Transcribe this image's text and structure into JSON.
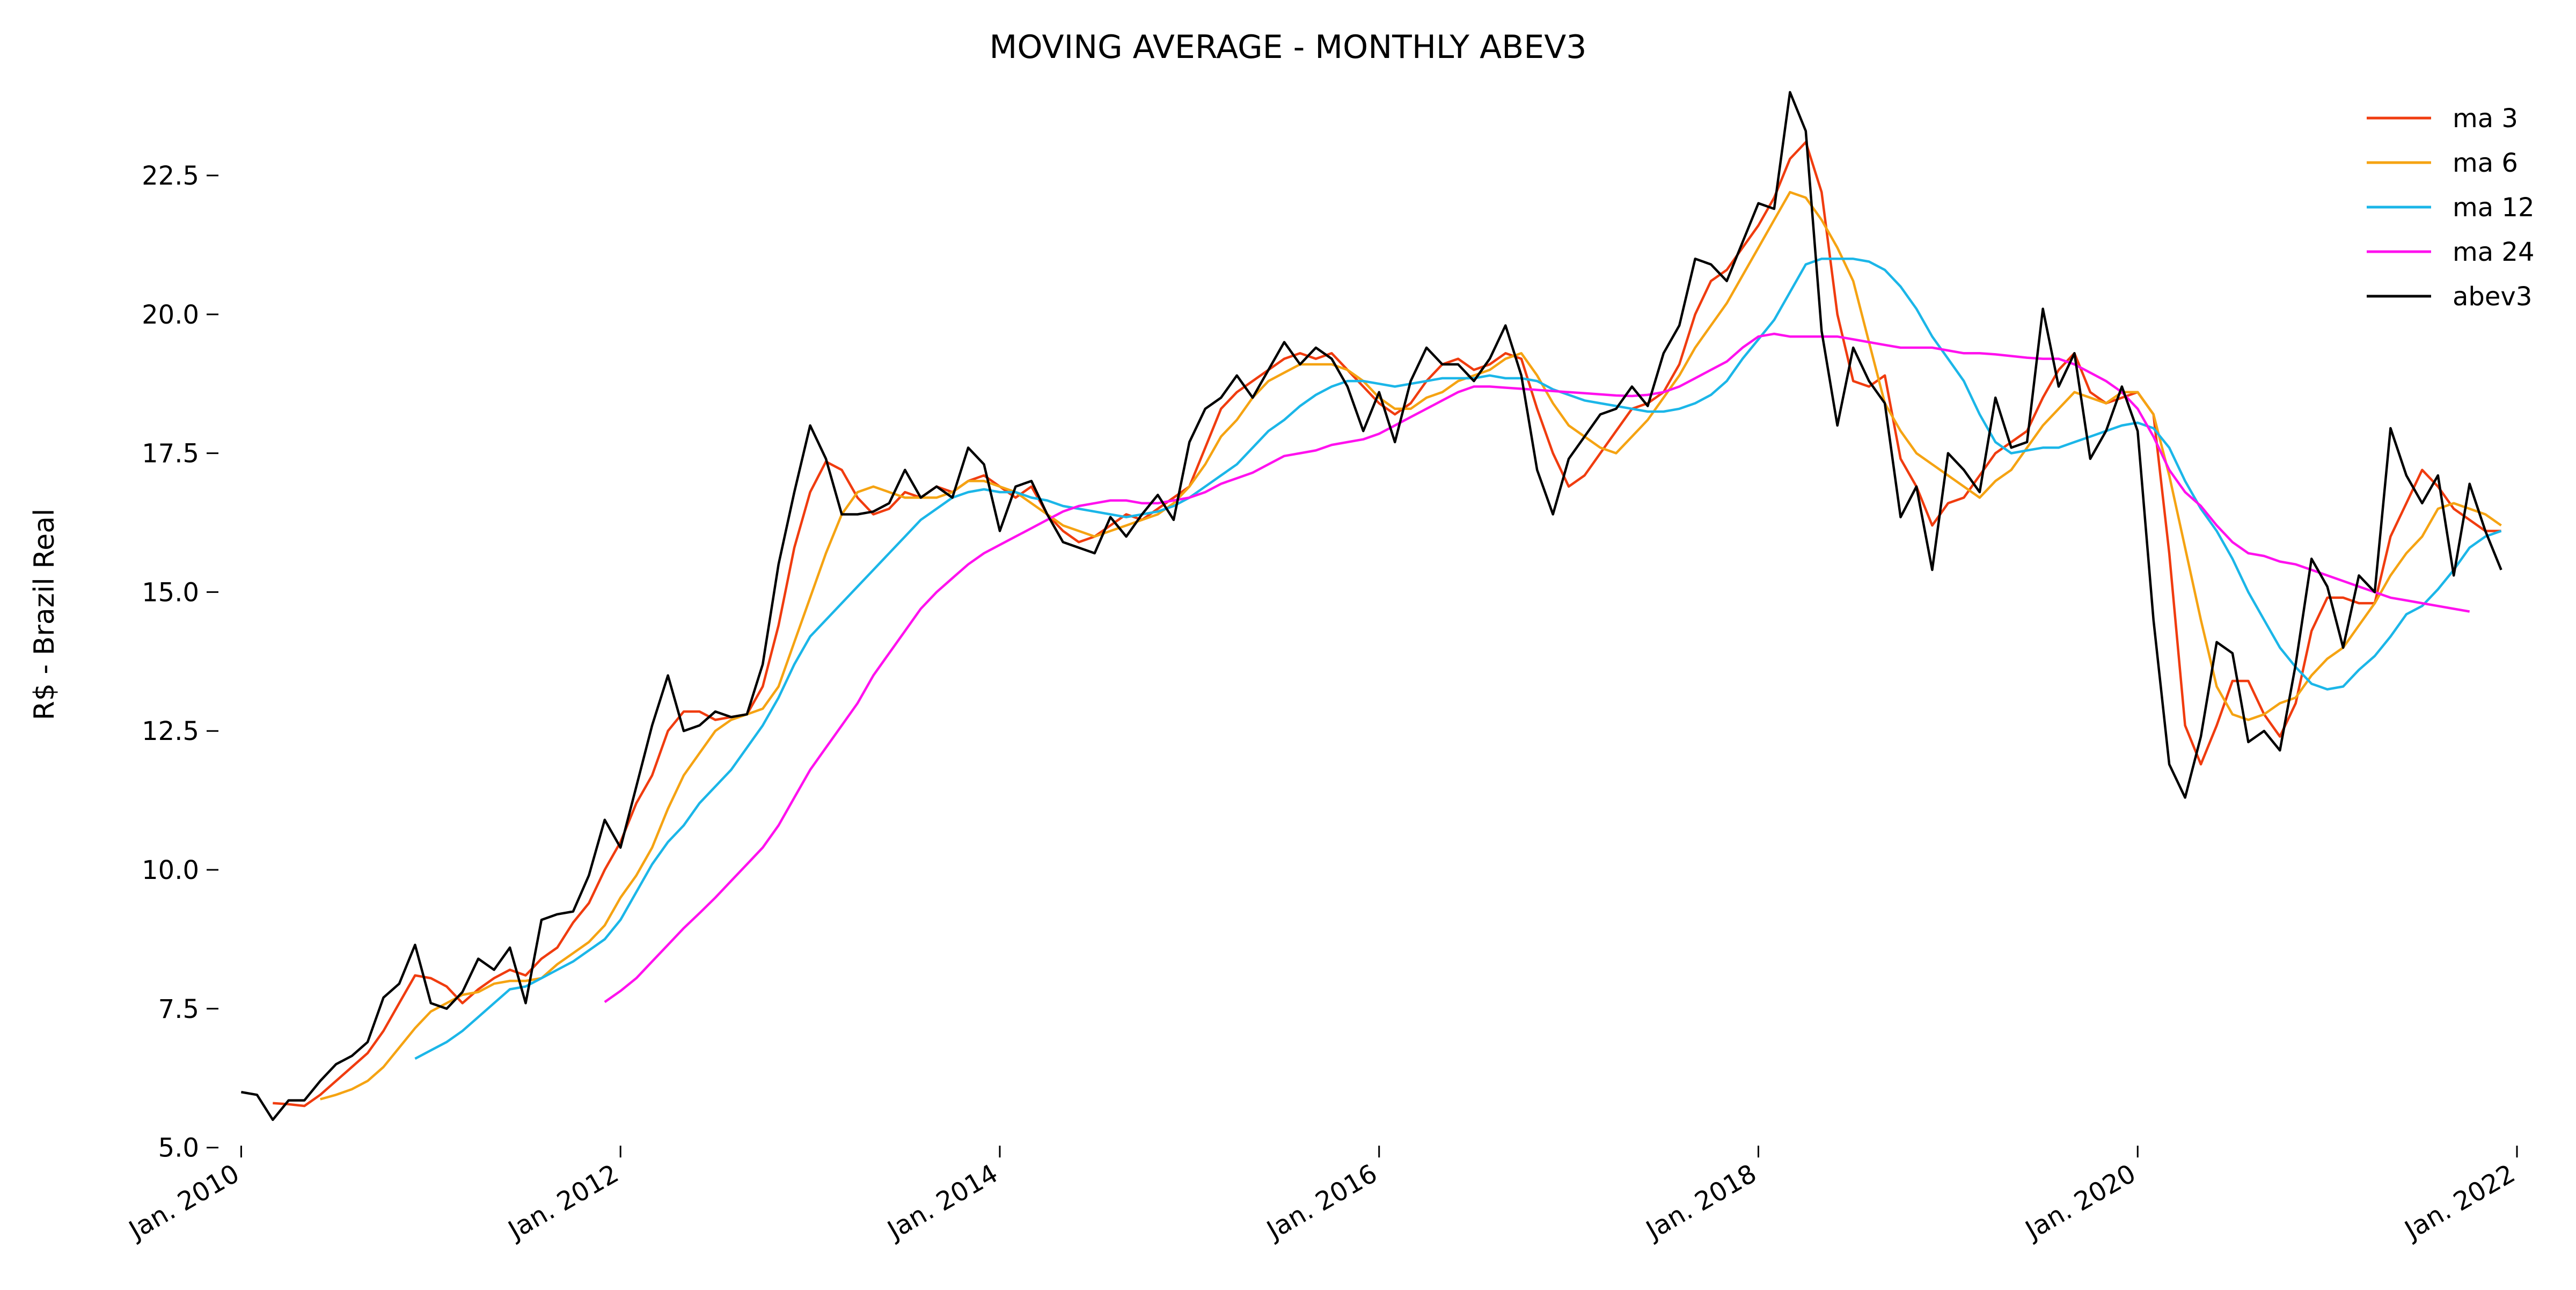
{
  "chart_data": {
    "type": "line",
    "title": "MOVING AVERAGE - MONTHLY ABEV3",
    "xlabel": "",
    "ylabel": "R$ - Brazil Real",
    "x_start": "2010-01",
    "x_frequency": "monthly",
    "xlim": [
      "2009-12",
      "2022-01"
    ],
    "ylim": [
      4.6,
      24.5
    ],
    "x_ticks": [
      {
        "date": "2010-01",
        "label": "Jan. 2010"
      },
      {
        "date": "2012-01",
        "label": "Jan. 2012"
      },
      {
        "date": "2014-01",
        "label": "Jan. 2014"
      },
      {
        "date": "2016-01",
        "label": "Jan. 2016"
      },
      {
        "date": "2018-01",
        "label": "Jan. 2018"
      },
      {
        "date": "2020-01",
        "label": "Jan. 2020"
      },
      {
        "date": "2022-01",
        "label": "Jan. 2022"
      }
    ],
    "y_ticks": [
      {
        "value": 5.0,
        "label": "5.0"
      },
      {
        "value": 7.5,
        "label": "7.5"
      },
      {
        "value": 10.0,
        "label": "10.0"
      },
      {
        "value": 12.5,
        "label": "12.5"
      },
      {
        "value": 15.0,
        "label": "15.0"
      },
      {
        "value": 17.5,
        "label": "17.5"
      },
      {
        "value": 20.0,
        "label": "20.0"
      },
      {
        "value": 22.5,
        "label": "22.5"
      }
    ],
    "grid": false,
    "legend_position": "top-right",
    "series": [
      {
        "name": "ma 3",
        "color": "#f03c0f",
        "values": [
          null,
          null,
          5.8,
          5.78,
          5.75,
          5.95,
          6.2,
          6.45,
          6.7,
          7.1,
          7.6,
          8.1,
          8.05,
          7.9,
          7.6,
          7.85,
          8.05,
          8.2,
          8.1,
          8.4,
          8.6,
          9.05,
          9.4,
          10.0,
          10.5,
          11.2,
          11.7,
          12.5,
          12.85,
          12.85,
          12.7,
          12.75,
          12.8,
          13.3,
          14.4,
          15.8,
          16.8,
          17.35,
          17.2,
          16.7,
          16.4,
          16.5,
          16.8,
          16.7,
          16.9,
          16.8,
          17.0,
          17.1,
          16.9,
          16.7,
          16.9,
          16.4,
          16.1,
          15.9,
          16.0,
          16.2,
          16.4,
          16.3,
          16.5,
          16.7,
          16.9,
          17.6,
          18.3,
          18.6,
          18.8,
          19.0,
          19.2,
          19.3,
          19.2,
          19.3,
          19.0,
          18.7,
          18.4,
          18.2,
          18.4,
          18.8,
          19.1,
          19.2,
          19.0,
          19.1,
          19.3,
          19.2,
          18.3,
          17.5,
          16.9,
          17.1,
          17.5,
          17.9,
          18.3,
          18.4,
          18.6,
          19.1,
          20.0,
          20.6,
          20.8,
          21.2,
          21.6,
          22.1,
          22.8,
          23.1,
          22.2,
          20.0,
          18.8,
          18.7,
          18.9,
          17.4,
          16.9,
          16.2,
          16.6,
          16.7,
          17.1,
          17.5,
          17.7,
          17.9,
          18.5,
          19.0,
          19.3,
          18.6,
          18.4,
          18.5,
          18.6,
          18.2,
          15.7,
          12.6,
          11.9,
          12.6,
          13.4,
          13.4,
          12.8,
          12.4,
          13.0,
          14.3,
          14.9,
          14.9,
          14.8,
          14.8,
          16.0,
          16.6,
          17.2,
          16.9,
          16.5,
          16.3,
          16.1,
          16.1
        ]
      },
      {
        "name": "ma 6",
        "color": "#f5a312",
        "values": [
          null,
          null,
          null,
          null,
          null,
          5.87,
          5.95,
          6.05,
          6.2,
          6.45,
          6.8,
          7.15,
          7.45,
          7.6,
          7.75,
          7.8,
          7.95,
          8.0,
          8.0,
          8.05,
          8.3,
          8.5,
          8.7,
          9.0,
          9.5,
          9.9,
          10.4,
          11.1,
          11.7,
          12.1,
          12.5,
          12.7,
          12.8,
          12.9,
          13.3,
          14.1,
          14.9,
          15.7,
          16.4,
          16.8,
          16.9,
          16.8,
          16.7,
          16.7,
          16.7,
          16.8,
          17.0,
          17.0,
          16.9,
          16.8,
          16.6,
          16.4,
          16.2,
          16.1,
          16.0,
          16.1,
          16.2,
          16.3,
          16.4,
          16.6,
          16.9,
          17.3,
          17.8,
          18.1,
          18.5,
          18.8,
          18.95,
          19.1,
          19.1,
          19.1,
          19.0,
          18.8,
          18.5,
          18.3,
          18.3,
          18.5,
          18.6,
          18.8,
          18.9,
          19.0,
          19.2,
          19.3,
          18.9,
          18.4,
          18.0,
          17.8,
          17.6,
          17.5,
          17.8,
          18.1,
          18.5,
          18.9,
          19.4,
          19.8,
          20.2,
          20.7,
          21.2,
          21.7,
          22.2,
          22.1,
          21.7,
          21.2,
          20.6,
          19.5,
          18.4,
          17.9,
          17.5,
          17.3,
          17.1,
          16.9,
          16.7,
          17.0,
          17.2,
          17.6,
          18.0,
          18.3,
          18.6,
          18.5,
          18.4,
          18.6,
          18.6,
          18.2,
          17.1,
          15.8,
          14.5,
          13.3,
          12.8,
          12.7,
          12.8,
          13.0,
          13.1,
          13.5,
          13.8,
          14.0,
          14.4,
          14.8,
          15.3,
          15.7,
          16.0,
          16.5,
          16.6,
          16.5,
          16.4,
          16.2
        ]
      },
      {
        "name": "ma 12",
        "color": "#1bb6e8",
        "values": [
          null,
          null,
          null,
          null,
          null,
          null,
          null,
          null,
          null,
          null,
          null,
          6.6,
          6.75,
          6.9,
          7.1,
          7.35,
          7.6,
          7.85,
          7.9,
          8.05,
          8.2,
          8.35,
          8.55,
          8.75,
          9.1,
          9.6,
          10.1,
          10.5,
          10.8,
          11.2,
          11.5,
          11.8,
          12.2,
          12.6,
          13.1,
          13.7,
          14.2,
          14.5,
          14.8,
          15.1,
          15.4,
          15.7,
          16.0,
          16.3,
          16.5,
          16.7,
          16.8,
          16.85,
          16.8,
          16.8,
          16.7,
          16.65,
          16.55,
          16.5,
          16.45,
          16.4,
          16.35,
          16.4,
          16.45,
          16.55,
          16.7,
          16.9,
          17.1,
          17.3,
          17.6,
          17.9,
          18.1,
          18.35,
          18.55,
          18.7,
          18.8,
          18.8,
          18.75,
          18.7,
          18.75,
          18.8,
          18.85,
          18.85,
          18.85,
          18.9,
          18.85,
          18.85,
          18.8,
          18.65,
          18.55,
          18.45,
          18.4,
          18.35,
          18.3,
          18.25,
          18.25,
          18.3,
          18.4,
          18.55,
          18.8,
          19.2,
          19.55,
          19.9,
          20.4,
          20.9,
          21.0,
          21.0,
          21.0,
          20.95,
          20.8,
          20.5,
          20.1,
          19.6,
          19.2,
          18.8,
          18.2,
          17.7,
          17.5,
          17.55,
          17.6,
          17.6,
          17.7,
          17.8,
          17.9,
          18.0,
          18.05,
          17.95,
          17.6,
          17.0,
          16.5,
          16.1,
          15.6,
          15.0,
          14.5,
          14.0,
          13.65,
          13.35,
          13.25,
          13.3,
          13.6,
          13.85,
          14.2,
          14.6,
          14.75,
          15.05,
          15.4,
          15.8,
          16.0,
          16.1
        ]
      },
      {
        "name": "ma 24",
        "color": "#ff11ee",
        "values": [
          null,
          null,
          null,
          null,
          null,
          null,
          null,
          null,
          null,
          null,
          null,
          null,
          null,
          null,
          null,
          null,
          null,
          null,
          null,
          null,
          null,
          null,
          null,
          7.62,
          7.82,
          8.05,
          8.35,
          8.65,
          8.95,
          9.22,
          9.5,
          9.8,
          10.1,
          10.4,
          10.8,
          11.3,
          11.8,
          12.2,
          12.6,
          13.0,
          13.5,
          13.9,
          14.3,
          14.7,
          15.0,
          15.25,
          15.5,
          15.7,
          15.85,
          16.0,
          16.15,
          16.3,
          16.45,
          16.55,
          16.6,
          16.65,
          16.65,
          16.6,
          16.6,
          16.65,
          16.7,
          16.8,
          16.95,
          17.05,
          17.15,
          17.3,
          17.45,
          17.5,
          17.55,
          17.65,
          17.7,
          17.75,
          17.85,
          18.0,
          18.15,
          18.3,
          18.45,
          18.6,
          18.7,
          18.7,
          18.68,
          18.66,
          18.64,
          18.62,
          18.6,
          18.58,
          18.56,
          18.54,
          18.53,
          18.55,
          18.6,
          18.7,
          18.85,
          19.0,
          19.15,
          19.4,
          19.6,
          19.65,
          19.6,
          19.6,
          19.6,
          19.6,
          19.55,
          19.5,
          19.45,
          19.4,
          19.4,
          19.4,
          19.35,
          19.3,
          19.3,
          19.28,
          19.25,
          19.22,
          19.2,
          19.2,
          19.1,
          18.95,
          18.8,
          18.6,
          18.3,
          17.8,
          17.2,
          16.8,
          16.55,
          16.2,
          15.9,
          15.7,
          15.65,
          15.55,
          15.5,
          15.4,
          15.3,
          15.2,
          15.1,
          15.0,
          14.9,
          14.85,
          14.8,
          14.75,
          14.7,
          14.65
        ]
      },
      {
        "name": "abev3",
        "color": "#000000",
        "values": [
          6.0,
          5.95,
          5.5,
          5.85,
          5.85,
          6.2,
          6.5,
          6.65,
          6.9,
          7.7,
          7.95,
          8.65,
          7.6,
          7.5,
          7.8,
          8.4,
          8.2,
          8.6,
          7.6,
          9.1,
          9.2,
          9.25,
          9.9,
          10.9,
          10.4,
          11.5,
          12.6,
          13.5,
          12.5,
          12.6,
          12.85,
          12.75,
          12.8,
          13.7,
          15.5,
          16.8,
          18.0,
          17.4,
          16.4,
          16.4,
          16.45,
          16.6,
          17.2,
          16.7,
          16.9,
          16.7,
          17.6,
          17.3,
          16.1,
          16.9,
          17.0,
          16.4,
          15.9,
          15.8,
          15.7,
          16.35,
          16.0,
          16.4,
          16.75,
          16.3,
          17.7,
          18.3,
          18.5,
          18.9,
          18.5,
          19.0,
          19.5,
          19.1,
          19.4,
          19.2,
          18.7,
          17.9,
          18.6,
          17.7,
          18.8,
          19.4,
          19.1,
          19.1,
          18.8,
          19.2,
          19.8,
          18.9,
          17.2,
          16.4,
          17.4,
          17.8,
          18.2,
          18.3,
          18.7,
          18.35,
          19.3,
          19.8,
          21.0,
          20.9,
          20.6,
          21.3,
          22.0,
          21.9,
          24.0,
          23.3,
          19.7,
          18.0,
          19.4,
          18.8,
          18.4,
          16.35,
          16.9,
          15.4,
          17.5,
          17.2,
          16.8,
          18.5,
          17.6,
          17.7,
          20.1,
          18.7,
          19.3,
          17.4,
          17.9,
          18.7,
          17.9,
          14.5,
          11.9,
          11.3,
          12.4,
          14.1,
          13.9,
          12.3,
          12.5,
          12.15,
          13.7,
          15.6,
          15.1,
          14.0,
          15.3,
          15.0,
          17.95,
          17.1,
          16.6,
          17.1,
          15.3,
          16.95,
          16.1,
          15.4
        ]
      }
    ]
  }
}
